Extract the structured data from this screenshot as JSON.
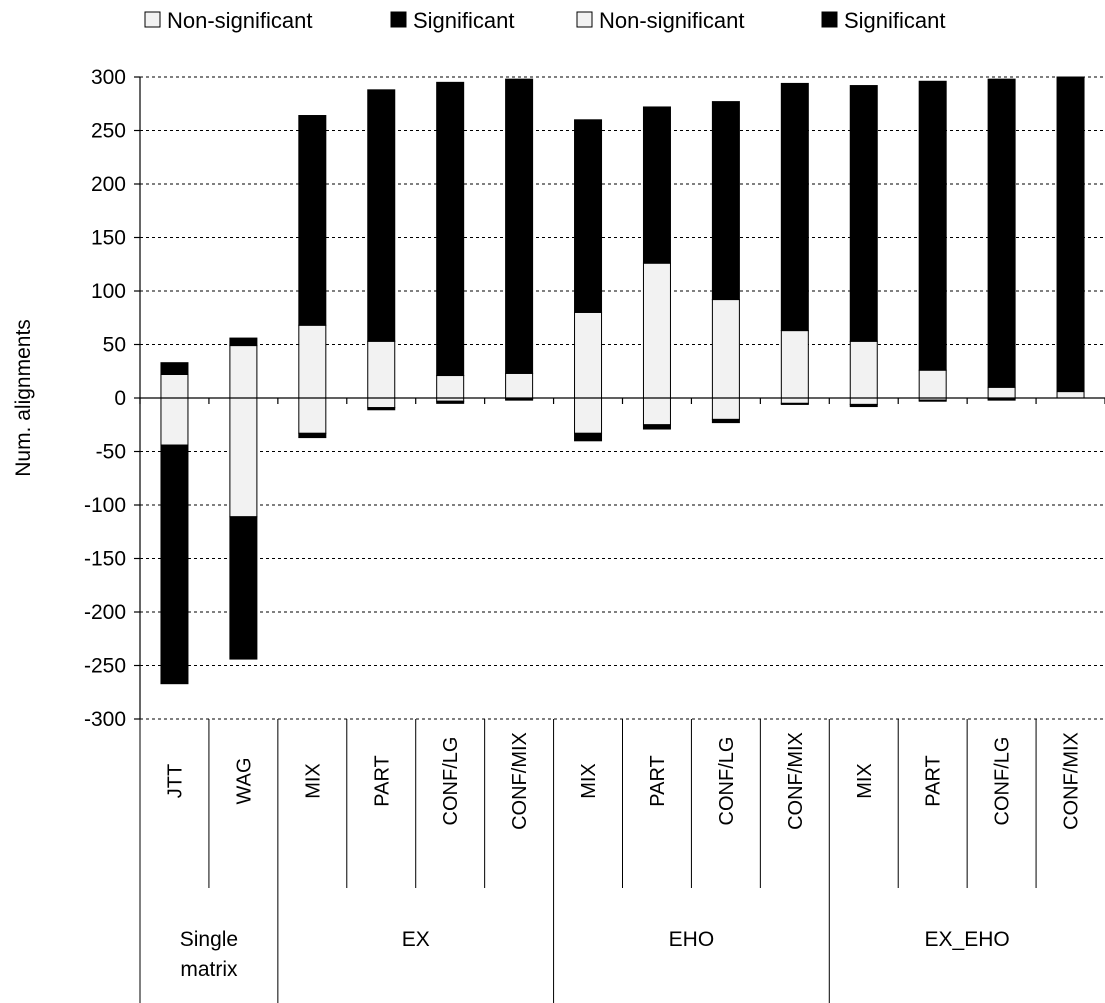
{
  "chart_data": {
    "type": "bar",
    "stacked": true,
    "ylabel": "Num. alignments",
    "ylim": [
      -300,
      300
    ],
    "yticks": [
      300,
      250,
      200,
      150,
      100,
      50,
      0,
      -50,
      -100,
      -150,
      -200,
      -250,
      -300
    ],
    "grid": true,
    "legend_position": "top",
    "legend": [
      {
        "label": "Non-significant",
        "color": "#f2f2f2"
      },
      {
        "label": "Significant",
        "color": "#000000"
      },
      {
        "label": "Non-significant",
        "color": "#f2f2f2"
      },
      {
        "label": "Significant",
        "color": "#000000"
      }
    ],
    "groups": [
      {
        "label": "Single\nmatrix",
        "categories": [
          "JTT",
          "WAG"
        ]
      },
      {
        "label": "EX",
        "categories": [
          "MIX",
          "PART",
          "CONF/LG",
          "CONF/MIX"
        ]
      },
      {
        "label": "EHO",
        "categories": [
          "MIX",
          "PART",
          "CONF/LG",
          "CONF/MIX"
        ]
      },
      {
        "label": "EX_EHO",
        "categories": [
          "MIX",
          "PART",
          "CONF/LG",
          "CONF/MIX"
        ]
      }
    ],
    "series": [
      {
        "name": "Non-significant",
        "color": "#f2f2f2",
        "values": [
          22,
          49,
          68,
          53,
          21,
          23,
          80,
          126,
          92,
          63,
          53,
          26,
          10,
          6
        ]
      },
      {
        "name": "Significant",
        "color": "#000000",
        "values": [
          11,
          7,
          196,
          235,
          274,
          275,
          180,
          146,
          185,
          231,
          239,
          270,
          288,
          294
        ]
      },
      {
        "name": "Non-significant",
        "color": "#f2f2f2",
        "values": [
          -44,
          -111,
          -33,
          -9,
          -3,
          -1,
          -33,
          -25,
          -20,
          -5,
          -6,
          -2,
          -1,
          0
        ]
      },
      {
        "name": "Significant",
        "color": "#000000",
        "values": [
          -223,
          -133,
          -4,
          -2,
          -2,
          -1,
          -7,
          -4,
          -3,
          -1,
          -2,
          -1,
          -1,
          0
        ]
      }
    ]
  }
}
